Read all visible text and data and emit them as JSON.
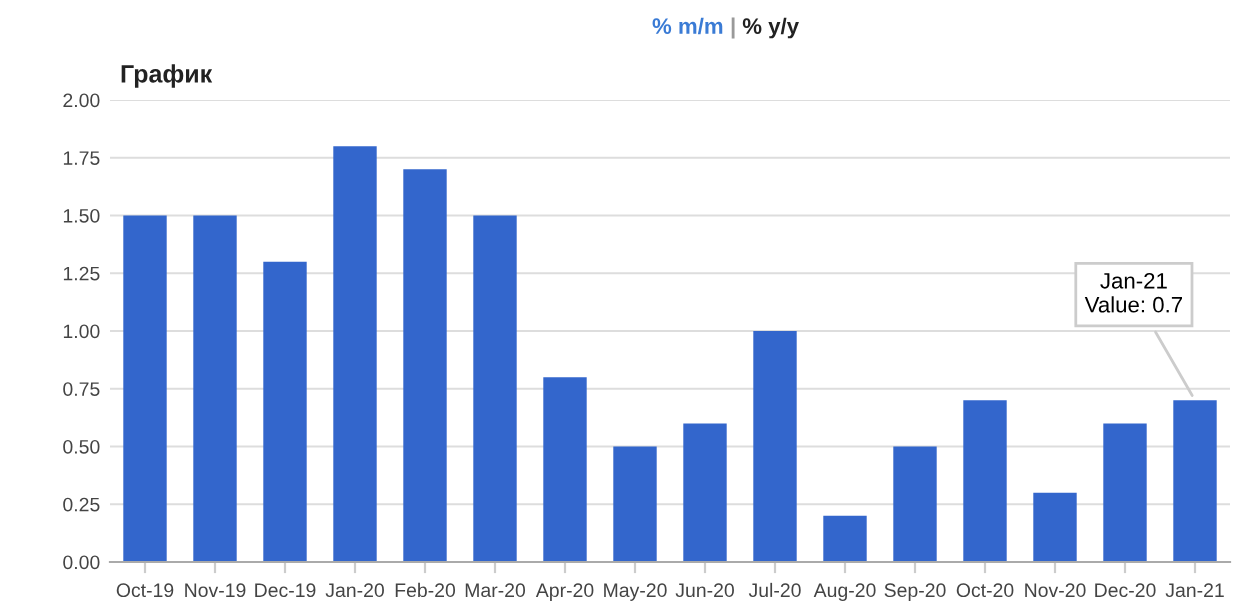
{
  "chart_data": {
    "type": "bar",
    "title": "График",
    "categories": [
      "Oct-19",
      "Nov-19",
      "Dec-19",
      "Jan-20",
      "Feb-20",
      "Mar-20",
      "Apr-20",
      "May-20",
      "Jun-20",
      "Jul-20",
      "Aug-20",
      "Sep-20",
      "Oct-20",
      "Nov-20",
      "Dec-20",
      "Jan-21"
    ],
    "values": [
      1.5,
      1.5,
      1.3,
      1.8,
      1.7,
      1.5,
      0.8,
      0.5,
      0.6,
      1.0,
      0.2,
      0.5,
      0.7,
      0.3,
      0.6,
      0.7
    ],
    "color": "#3366cc",
    "ylim": [
      0,
      2
    ],
    "yticks": [
      {
        "value": 0,
        "label": "0.00"
      },
      {
        "value": 0.25,
        "label": "0.25"
      },
      {
        "value": 0.5,
        "label": "0.50"
      },
      {
        "value": 0.75,
        "label": "0.75"
      },
      {
        "value": 1,
        "label": "1.00"
      },
      {
        "value": 1.25,
        "label": "1.25"
      },
      {
        "value": 1.5,
        "label": "1.50"
      },
      {
        "value": 1.75,
        "label": "1.75"
      },
      {
        "value": 2,
        "label": "2.00"
      }
    ],
    "grid": "y",
    "legend": false,
    "annotations": [
      "% m/m",
      "|",
      "% y/y",
      {
        "text": "Jan-21\nValue: 0.7",
        "x": "Jan-21",
        "y": 0.7
      }
    ]
  }
}
